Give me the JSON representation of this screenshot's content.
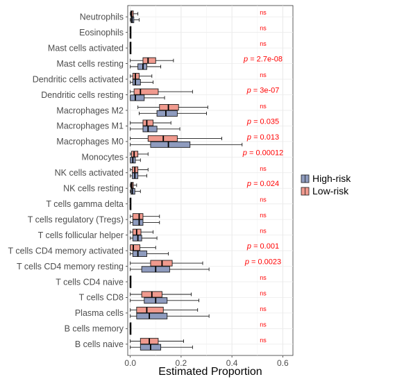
{
  "chart_data": {
    "type": "boxplot",
    "orientation": "horizontal",
    "xlabel": "Estimated Proportion",
    "ylabel": "",
    "xlim": [
      -0.01,
      0.64
    ],
    "x_ticks": [
      {
        "value": 0.0,
        "label": "0.0"
      },
      {
        "value": 0.2,
        "label": "0.2"
      },
      {
        "value": 0.4,
        "label": "0.4"
      },
      {
        "value": 0.6,
        "label": "0.6"
      }
    ],
    "grid": true,
    "legend_position": "right",
    "colors": {
      "high": "#8E9BBE",
      "low": "#F09A8E",
      "pvalue": "#FF0000"
    },
    "series": [
      {
        "name": "High-risk",
        "key": "high",
        "color": "#8E9BBE"
      },
      {
        "name": "Low-risk",
        "key": "low",
        "color": "#F09A8E"
      }
    ],
    "categories": [
      {
        "label": "Neutrophils",
        "pvalue_label": "ns",
        "low": {
          "min": 0.0,
          "q1": 0.002,
          "median": 0.005,
          "q3": 0.012,
          "max": 0.03
        },
        "high": {
          "min": 0.0,
          "q1": 0.003,
          "median": 0.007,
          "q3": 0.014,
          "max": 0.035
        }
      },
      {
        "label": "Eosinophils",
        "pvalue_label": "ns",
        "low": {
          "min": 0.0,
          "q1": 0.0,
          "median": 0.0,
          "q3": 0.0,
          "max": 0.001
        },
        "high": {
          "min": 0.0,
          "q1": 0.0,
          "median": 0.0,
          "q3": 0.0,
          "max": 0.001
        }
      },
      {
        "label": "Mast cells activated",
        "pvalue_label": "ns",
        "low": {
          "min": 0.0,
          "q1": 0.0,
          "median": 0.0,
          "q3": 0.0,
          "max": 0.002
        },
        "high": {
          "min": 0.0,
          "q1": 0.0,
          "median": 0.0,
          "q3": 0.0,
          "max": 0.002
        }
      },
      {
        "label": "Mast cells resting",
        "pvalue_label": "p = 2.7e-08",
        "low": {
          "min": 0.0,
          "q1": 0.05,
          "median": 0.07,
          "q3": 0.1,
          "max": 0.17
        },
        "high": {
          "min": 0.0,
          "q1": 0.03,
          "median": 0.05,
          "q3": 0.065,
          "max": 0.12
        }
      },
      {
        "label": "Dendritic cells activated",
        "pvalue_label": "ns",
        "low": {
          "min": 0.0,
          "q1": 0.01,
          "median": 0.02,
          "q3": 0.035,
          "max": 0.085
        },
        "high": {
          "min": 0.0,
          "q1": 0.01,
          "median": 0.02,
          "q3": 0.04,
          "max": 0.09
        }
      },
      {
        "label": "Dendritic cells resting",
        "pvalue_label": "p = 3e-07",
        "low": {
          "min": 0.0,
          "q1": 0.015,
          "median": 0.04,
          "q3": 0.11,
          "max": 0.245
        },
        "high": {
          "min": 0.0,
          "q1": 0.0,
          "median": 0.02,
          "q3": 0.055,
          "max": 0.135
        }
      },
      {
        "label": "Macrophages M2",
        "pvalue_label": "ns",
        "low": {
          "min": 0.03,
          "q1": 0.115,
          "median": 0.15,
          "q3": 0.19,
          "max": 0.305
        },
        "high": {
          "min": 0.035,
          "q1": 0.105,
          "median": 0.14,
          "q3": 0.185,
          "max": 0.3
        }
      },
      {
        "label": "Macrophages M1",
        "pvalue_label": "p = 0.035",
        "low": {
          "min": 0.0,
          "q1": 0.05,
          "median": 0.065,
          "q3": 0.09,
          "max": 0.16
        },
        "high": {
          "min": 0.0,
          "q1": 0.05,
          "median": 0.07,
          "q3": 0.105,
          "max": 0.195
        }
      },
      {
        "label": "Macrophages M0",
        "pvalue_label": "p = 0.013",
        "low": {
          "min": 0.0,
          "q1": 0.07,
          "median": 0.13,
          "q3": 0.185,
          "max": 0.36
        },
        "high": {
          "min": 0.0,
          "q1": 0.08,
          "median": 0.15,
          "q3": 0.235,
          "max": 0.44
        }
      },
      {
        "label": "Monocytes",
        "pvalue_label": "p = 0.00012",
        "low": {
          "min": 0.0,
          "q1": 0.005,
          "median": 0.015,
          "q3": 0.03,
          "max": 0.07
        },
        "high": {
          "min": 0.0,
          "q1": 0.0,
          "median": 0.01,
          "q3": 0.02,
          "max": 0.04
        }
      },
      {
        "label": "NK cells activated",
        "pvalue_label": "ns",
        "low": {
          "min": 0.0,
          "q1": 0.008,
          "median": 0.018,
          "q3": 0.03,
          "max": 0.07
        },
        "high": {
          "min": 0.0,
          "q1": 0.008,
          "median": 0.018,
          "q3": 0.03,
          "max": 0.065
        }
      },
      {
        "label": "NK cells resting",
        "pvalue_label": "p = 0.024",
        "low": {
          "min": 0.0,
          "q1": 0.002,
          "median": 0.006,
          "q3": 0.012,
          "max": 0.025
        },
        "high": {
          "min": 0.0,
          "q1": 0.003,
          "median": 0.008,
          "q3": 0.018,
          "max": 0.04
        }
      },
      {
        "label": "T cells gamma delta",
        "pvalue_label": "ns",
        "low": {
          "min": 0.0,
          "q1": 0.0,
          "median": 0.0,
          "q3": 0.0,
          "max": 0.001
        },
        "high": {
          "min": 0.0,
          "q1": 0.0,
          "median": 0.0,
          "q3": 0.0,
          "max": 0.001
        }
      },
      {
        "label": "T cells regulatory (Tregs)",
        "pvalue_label": "ns",
        "low": {
          "min": 0.0,
          "q1": 0.01,
          "median": 0.035,
          "q3": 0.05,
          "max": 0.115
        },
        "high": {
          "min": 0.0,
          "q1": 0.01,
          "median": 0.035,
          "q3": 0.05,
          "max": 0.115
        }
      },
      {
        "label": "T cells follicular helper",
        "pvalue_label": "ns",
        "low": {
          "min": 0.0,
          "q1": 0.01,
          "median": 0.025,
          "q3": 0.042,
          "max": 0.09
        },
        "high": {
          "min": 0.0,
          "q1": 0.01,
          "median": 0.03,
          "q3": 0.045,
          "max": 0.105
        }
      },
      {
        "label": "T cells CD4 memory activated",
        "pvalue_label": "p = 0.001",
        "low": {
          "min": 0.0,
          "q1": 0.0,
          "median": 0.012,
          "q3": 0.038,
          "max": 0.1
        },
        "high": {
          "min": 0.0,
          "q1": 0.01,
          "median": 0.03,
          "q3": 0.065,
          "max": 0.15
        }
      },
      {
        "label": "T cells CD4 memory resting",
        "pvalue_label": "p = 0.0023",
        "low": {
          "min": 0.0,
          "q1": 0.08,
          "median": 0.125,
          "q3": 0.165,
          "max": 0.285
        },
        "high": {
          "min": 0.0,
          "q1": 0.045,
          "median": 0.1,
          "q3": 0.155,
          "max": 0.31
        }
      },
      {
        "label": "T cells CD4 naive",
        "pvalue_label": "ns",
        "low": {
          "min": 0.0,
          "q1": 0.0,
          "median": 0.0,
          "q3": 0.0,
          "max": 0.001
        },
        "high": {
          "min": 0.0,
          "q1": 0.0,
          "median": 0.0,
          "q3": 0.0,
          "max": 0.001
        }
      },
      {
        "label": "T cells CD8",
        "pvalue_label": "ns",
        "low": {
          "min": 0.0,
          "q1": 0.045,
          "median": 0.085,
          "q3": 0.125,
          "max": 0.24
        },
        "high": {
          "min": 0.0,
          "q1": 0.055,
          "median": 0.1,
          "q3": 0.145,
          "max": 0.27
        }
      },
      {
        "label": "Plasma cells",
        "pvalue_label": "ns",
        "low": {
          "min": 0.0,
          "q1": 0.025,
          "median": 0.065,
          "q3": 0.13,
          "max": 0.265
        },
        "high": {
          "min": 0.0,
          "q1": 0.025,
          "median": 0.075,
          "q3": 0.145,
          "max": 0.31
        }
      },
      {
        "label": "B cells memory",
        "pvalue_label": "ns",
        "low": {
          "min": 0.0,
          "q1": 0.0,
          "median": 0.0,
          "q3": 0.0,
          "max": 0.001
        },
        "high": {
          "min": 0.0,
          "q1": 0.0,
          "median": 0.0,
          "q3": 0.0,
          "max": 0.001
        }
      },
      {
        "label": "B cells naive",
        "pvalue_label": "ns",
        "low": {
          "min": 0.0,
          "q1": 0.04,
          "median": 0.075,
          "q3": 0.11,
          "max": 0.21
        },
        "high": {
          "min": 0.0,
          "q1": 0.04,
          "median": 0.08,
          "q3": 0.12,
          "max": 0.245
        }
      }
    ]
  }
}
